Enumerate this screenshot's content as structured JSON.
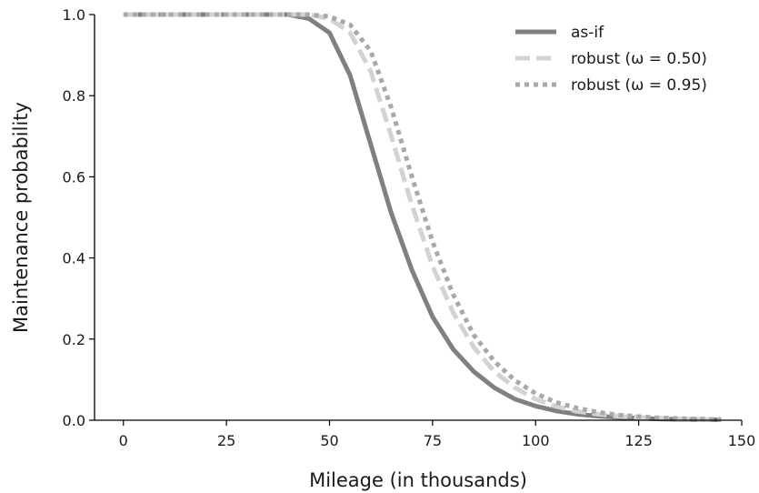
{
  "chart_data": {
    "type": "line",
    "title": "",
    "xlabel": "Mileage (in thousands)",
    "ylabel": "Maintenance probability",
    "xlim": [
      -7,
      150
    ],
    "ylim": [
      0,
      1.0
    ],
    "xticks": [
      0,
      25,
      50,
      75,
      100,
      125,
      150
    ],
    "yticks": [
      0.0,
      0.2,
      0.4,
      0.6,
      0.8,
      1.0
    ],
    "xtick_labels": [
      "0",
      "25",
      "50",
      "75",
      "100",
      "125",
      "150"
    ],
    "ytick_labels": [
      "0.0",
      "0.2",
      "0.4",
      "0.6",
      "0.8",
      "1.0"
    ],
    "grid": false,
    "legend_position": "top-right",
    "x": [
      0,
      5,
      10,
      15,
      20,
      25,
      30,
      35,
      40,
      45,
      50,
      55,
      60,
      65,
      70,
      75,
      80,
      85,
      90,
      95,
      100,
      105,
      110,
      115,
      120,
      125,
      130,
      135,
      140,
      145
    ],
    "series": [
      {
        "name": "as-if",
        "style": "solid",
        "color": "#808080",
        "values": [
          1.0,
          1.0,
          1.0,
          1.0,
          1.0,
          1.0,
          1.0,
          1.0,
          1.0,
          0.99,
          0.955,
          0.85,
          0.68,
          0.51,
          0.37,
          0.255,
          0.175,
          0.12,
          0.08,
          0.052,
          0.035,
          0.023,
          0.015,
          0.01,
          0.007,
          0.005,
          0.003,
          0.002,
          0.0015,
          0.001
        ]
      },
      {
        "name": "robust (ω = 0.50)",
        "style": "dashed",
        "color": "#d3d3d3",
        "values": [
          1.0,
          1.0,
          1.0,
          1.0,
          1.0,
          1.0,
          1.0,
          1.0,
          1.0,
          1.0,
          0.99,
          0.955,
          0.86,
          0.7,
          0.53,
          0.38,
          0.265,
          0.18,
          0.12,
          0.08,
          0.052,
          0.034,
          0.022,
          0.015,
          0.01,
          0.007,
          0.005,
          0.003,
          0.002,
          0.0015
        ]
      },
      {
        "name": "robust (ω = 0.95)",
        "style": "dotted",
        "color": "#a9a9a9",
        "values": [
          1.0,
          1.0,
          1.0,
          1.0,
          1.0,
          1.0,
          1.0,
          1.0,
          1.0,
          1.0,
          0.995,
          0.975,
          0.91,
          0.77,
          0.6,
          0.44,
          0.31,
          0.21,
          0.145,
          0.098,
          0.066,
          0.044,
          0.03,
          0.02,
          0.013,
          0.009,
          0.006,
          0.004,
          0.003,
          0.002
        ]
      }
    ]
  }
}
